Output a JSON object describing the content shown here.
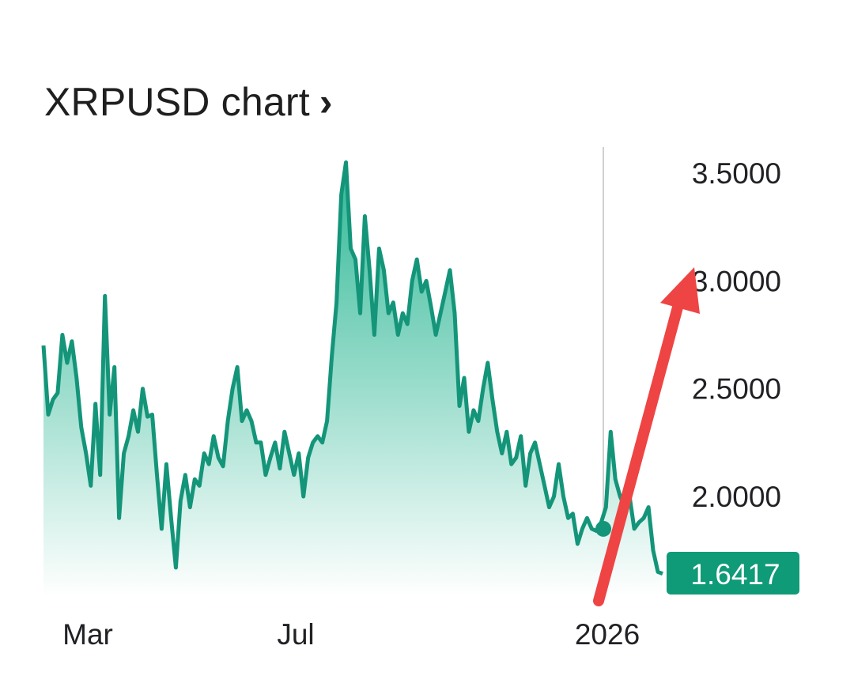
{
  "header": {
    "title": "XRPUSD chart",
    "chevron": "›"
  },
  "colors": {
    "line": "#14957a",
    "fill_top": "#2fb896",
    "fill_bottom": "#ffffff",
    "divider": "#d0d0d0",
    "current_badge": "#0f9a78",
    "arrow": "#ef4444"
  },
  "chart_data": {
    "type": "area",
    "title": "XRPUSD chart",
    "x_ticks": [
      "Mar",
      "Jul",
      "2026"
    ],
    "y_ticks": [
      "3.5000",
      "3.0000",
      "2.5000",
      "2.0000"
    ],
    "y_tick_values": [
      3.5,
      3.0,
      2.5,
      2.0
    ],
    "ylim": [
      1.58,
      3.6
    ],
    "current_value_label": "1.6417",
    "current_value": 1.6417,
    "marker_value": 1.85,
    "grid": false,
    "annotation": "red arrow pointing upward",
    "series": [
      {
        "values": [
          2.7,
          2.38,
          2.45,
          2.48,
          2.75,
          2.62,
          2.72,
          2.55,
          2.32,
          2.2,
          2.05,
          2.43,
          2.1,
          2.93,
          2.38,
          2.6,
          1.9,
          2.2,
          2.28,
          2.4,
          2.3,
          2.5,
          2.37,
          2.38,
          2.1,
          1.85,
          2.15,
          1.9,
          1.67,
          1.98,
          2.1,
          1.95,
          2.08,
          2.05,
          2.2,
          2.15,
          2.28,
          2.18,
          2.14,
          2.35,
          2.5,
          2.6,
          2.35,
          2.4,
          2.35,
          2.25,
          2.25,
          2.1,
          2.18,
          2.25,
          2.13,
          2.3,
          2.2,
          2.1,
          2.2,
          2.0,
          2.18,
          2.25,
          2.28,
          2.25,
          2.35,
          2.65,
          2.9,
          3.4,
          3.55,
          3.15,
          3.1,
          2.85,
          3.3,
          3.05,
          2.75,
          3.15,
          3.05,
          2.85,
          2.9,
          2.75,
          2.85,
          2.8,
          3.0,
          3.1,
          2.95,
          3.0,
          2.88,
          2.75,
          2.85,
          2.95,
          3.05,
          2.85,
          2.42,
          2.55,
          2.3,
          2.4,
          2.35,
          2.5,
          2.62,
          2.45,
          2.3,
          2.2,
          2.3,
          2.15,
          2.18,
          2.28,
          2.05,
          2.2,
          2.25,
          2.15,
          2.05,
          1.95,
          2.0,
          2.15,
          2.0,
          1.9,
          1.92,
          1.78,
          1.85,
          1.9,
          1.85,
          1.84,
          1.88,
          1.95,
          2.3,
          2.08,
          2.0,
          1.95,
          2.0,
          1.85,
          1.88,
          1.9,
          1.95,
          1.75,
          1.65,
          1.6417
        ],
        "note": ""
      }
    ]
  }
}
